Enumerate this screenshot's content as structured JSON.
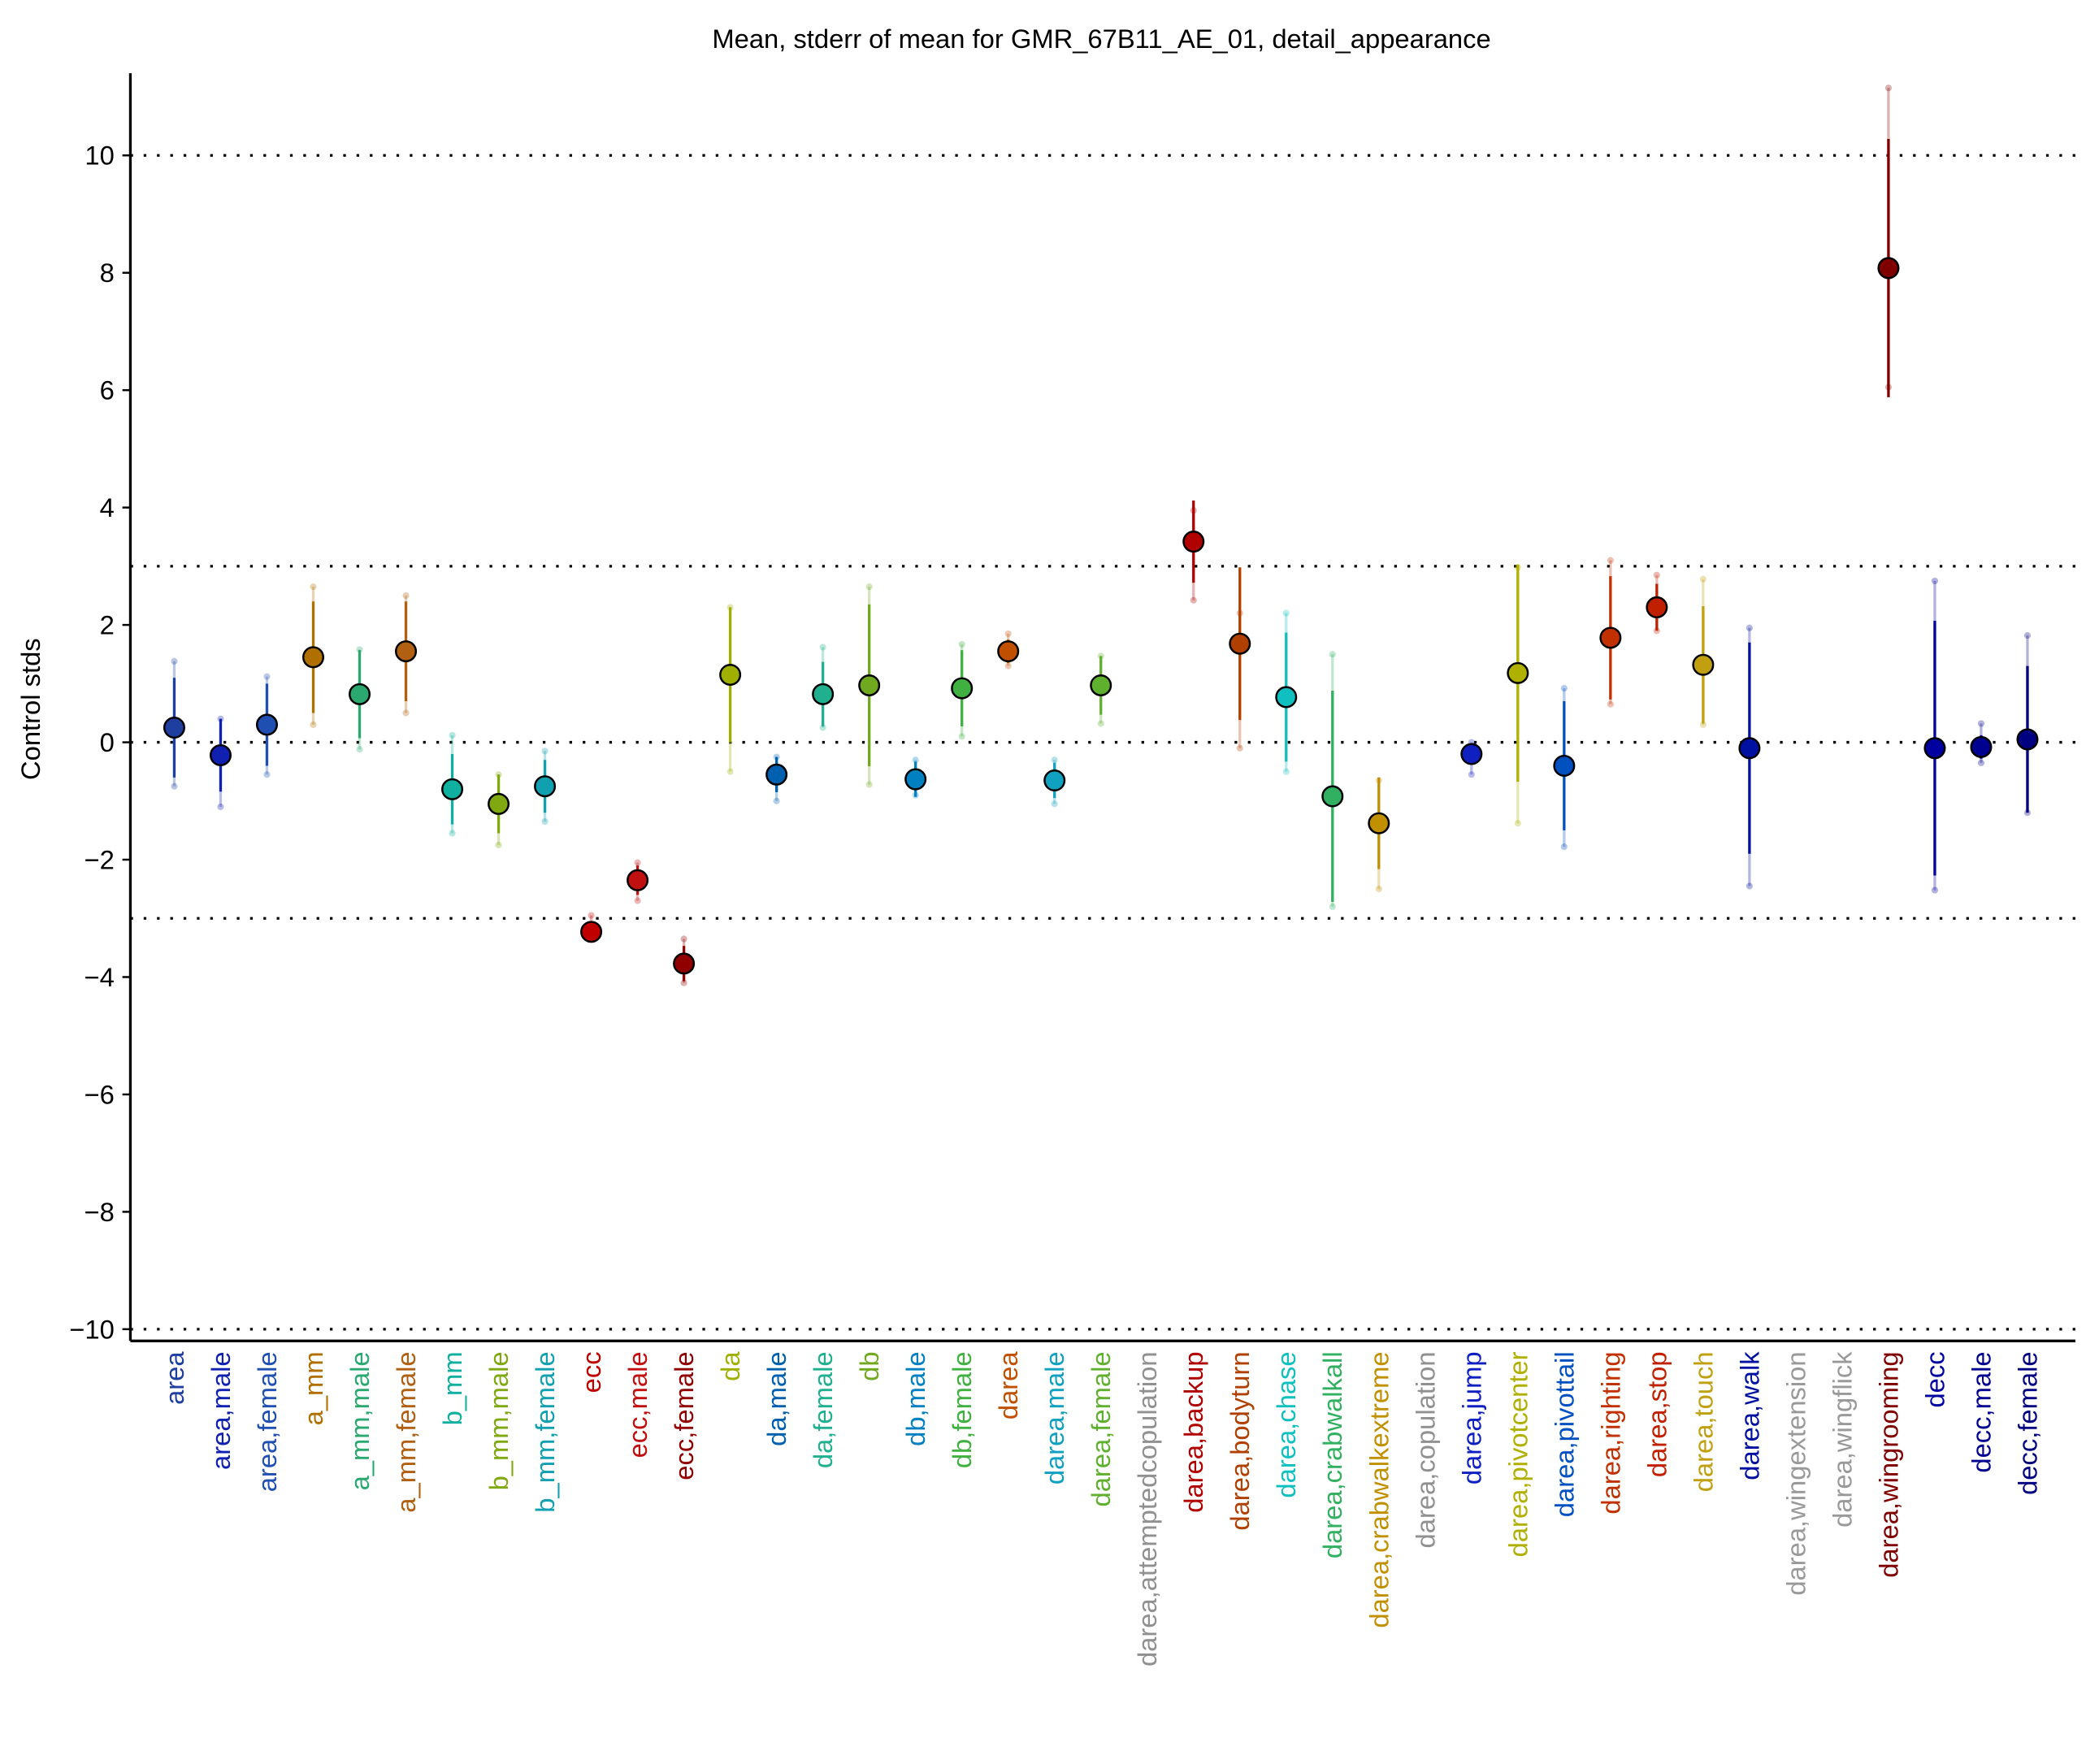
{
  "chart_data": {
    "type": "errorbar",
    "title": "Mean, stderr of mean for GMR_67B11_AE_01, detail_appearance",
    "y_label": "Control stds",
    "categories": [
      "area",
      "area,male",
      "area,female",
      "a_mm",
      "a_mm,male",
      "a_mm,female",
      "b_mm",
      "b_mm,male",
      "b_mm,female",
      "ecc",
      "ecc,male",
      "ecc,female",
      "da",
      "da,male",
      "da,female",
      "db",
      "db,male",
      "db,female",
      "darea",
      "darea,male",
      "darea,female",
      "darea,attemptedcopulation",
      "darea,backup",
      "darea,bodyturn",
      "darea,chase",
      "darea,crabwalkall",
      "darea,crabwalkextreme",
      "darea,copulation",
      "darea,jump",
      "darea,pivotcenter",
      "darea,pivottail",
      "darea,righting",
      "darea,stop",
      "darea,touch",
      "darea,walk",
      "darea,wingextension",
      "darea,wingflick",
      "darea,wingrooming",
      "decc",
      "decc,male",
      "decc,female"
    ],
    "colors": [
      "#1f3fa0",
      "#1020b0",
      "#1f4fb0",
      "#b07000",
      "#2aa870",
      "#b06010",
      "#10b0a0",
      "#80a810",
      "#10a0b0",
      "#c00000",
      "#c01010",
      "#900000",
      "#a0b000",
      "#0060b0",
      "#20b090",
      "#70a820",
      "#0080c0",
      "#40b040",
      "#c05000",
      "#10a0c0",
      "#60b030",
      "#909090",
      "#b00000",
      "#b04000",
      "#10c0c0",
      "#30b060",
      "#c09000",
      "#909090",
      "#1020c0",
      "#b0b000",
      "#0050c0",
      "#c03000",
      "#c02000",
      "#c0a010",
      "#0010a0",
      "#999999",
      "#999999",
      "#800000",
      "#0000a0",
      "#000090",
      "#000080"
    ],
    "values": [
      0.25,
      -0.22,
      0.3,
      1.45,
      0.82,
      1.55,
      -0.8,
      -1.05,
      -0.75,
      -3.23,
      -2.35,
      -3.77,
      1.15,
      -0.55,
      0.82,
      0.97,
      -0.63,
      0.92,
      1.55,
      -0.65,
      0.97,
      null,
      3.42,
      1.68,
      0.77,
      -0.92,
      -1.38,
      null,
      -0.2,
      1.18,
      -0.4,
      1.78,
      2.3,
      1.32,
      -0.1,
      null,
      null,
      8.08,
      -0.1,
      -0.08,
      0.05
    ],
    "errors": [
      0.85,
      0.62,
      0.7,
      0.95,
      0.75,
      0.85,
      0.6,
      0.5,
      0.45,
      0.15,
      0.25,
      0.3,
      1.15,
      0.3,
      0.55,
      1.38,
      0.3,
      0.65,
      0.2,
      0.3,
      0.5,
      null,
      0.7,
      1.3,
      1.1,
      1.8,
      0.78,
      null,
      0.15,
      1.85,
      1.1,
      1.05,
      0.4,
      1.0,
      1.8,
      null,
      null,
      2.2,
      2.17,
      0.2,
      1.25
    ],
    "lows": [
      -0.75,
      -1.1,
      -0.55,
      0.3,
      -0.12,
      0.5,
      -1.55,
      -1.75,
      -1.35,
      -3.35,
      -2.7,
      -4.1,
      -0.5,
      -1.0,
      0.25,
      -0.72,
      -0.9,
      0.1,
      1.3,
      -1.05,
      0.32,
      null,
      2.42,
      -0.1,
      -0.5,
      -2.8,
      -2.5,
      null,
      -0.55,
      -1.38,
      -1.78,
      0.65,
      1.9,
      0.3,
      -2.45,
      null,
      null,
      6.05,
      -2.52,
      -0.35,
      -1.2
    ],
    "highs": [
      1.38,
      0.4,
      1.12,
      2.65,
      1.58,
      2.5,
      0.12,
      -0.55,
      -0.15,
      -2.95,
      -2.05,
      -3.35,
      2.3,
      -0.25,
      1.62,
      2.65,
      -0.3,
      1.67,
      1.85,
      -0.3,
      1.47,
      null,
      3.95,
      2.2,
      2.2,
      1.5,
      -0.65,
      null,
      0,
      2.98,
      0.92,
      3.1,
      2.85,
      2.78,
      1.95,
      null,
      null,
      11.15,
      2.75,
      0.32,
      1.82
    ],
    "ylim": [
      -10.2,
      11.4
    ],
    "yticks": [
      {
        "value": -10,
        "label": "−10"
      },
      {
        "value": -8,
        "label": "−8"
      },
      {
        "value": -6,
        "label": "−6"
      },
      {
        "value": -4,
        "label": "−4"
      },
      {
        "value": -2,
        "label": "−2"
      },
      0,
      2,
      4,
      6,
      8,
      10
    ],
    "hlines": [
      -10,
      -3,
      0,
      3,
      10
    ]
  }
}
